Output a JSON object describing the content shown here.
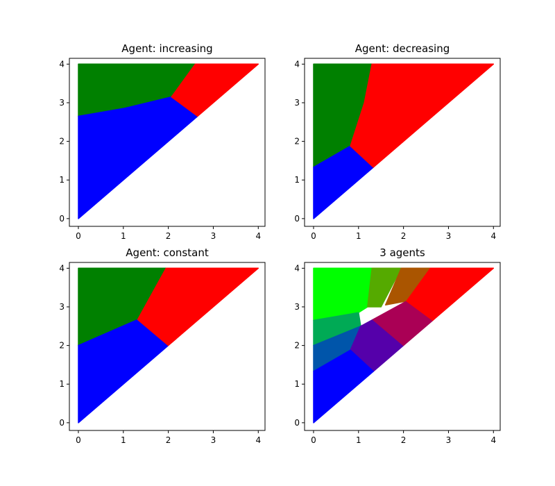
{
  "figure": {
    "colors": {
      "green": "#008000",
      "blue": "#0000ff",
      "red": "#ff0000"
    }
  },
  "chart_data": [
    {
      "type": "area",
      "title": "Agent: increasing",
      "xlim": [
        -0.2,
        4.15
      ],
      "ylim": [
        -0.2,
        4.15
      ],
      "xticks": [
        "0",
        "1",
        "2",
        "3",
        "4"
      ],
      "yticks": [
        "0",
        "1",
        "2",
        "3",
        "4"
      ],
      "domain": [
        [
          0,
          0
        ],
        [
          0,
          4
        ],
        [
          4,
          4
        ]
      ],
      "regions": [
        {
          "color": "#008000",
          "polygon": [
            [
              0,
              2.65
            ],
            [
              0,
              4
            ],
            [
              2.6,
              4
            ],
            [
              2.07,
              3.15
            ],
            [
              1.0,
              2.85
            ]
          ]
        },
        {
          "color": "#0000ff",
          "polygon": [
            [
              0,
              0
            ],
            [
              0,
              2.65
            ],
            [
              1.0,
              2.85
            ],
            [
              2.07,
              3.15
            ],
            [
              2.65,
              2.65
            ]
          ]
        },
        {
          "color": "#ff0000",
          "polygon": [
            [
              2.07,
              3.15
            ],
            [
              2.6,
              4
            ],
            [
              4,
              4
            ],
            [
              2.65,
              2.65
            ]
          ]
        }
      ]
    },
    {
      "type": "area",
      "title": "Agent: decreasing",
      "xlim": [
        -0.2,
        4.15
      ],
      "ylim": [
        -0.2,
        4.15
      ],
      "xticks": [
        "0",
        "1",
        "2",
        "3",
        "4"
      ],
      "yticks": [
        "0",
        "1",
        "2",
        "3",
        "4"
      ],
      "domain": [
        [
          0,
          0
        ],
        [
          0,
          4
        ],
        [
          4,
          4
        ]
      ],
      "regions": [
        {
          "color": "#008000",
          "polygon": [
            [
              0,
              1.33
            ],
            [
              0,
              4
            ],
            [
              1.3,
              4
            ],
            [
              1.13,
              3.0
            ],
            [
              0.82,
              1.88
            ]
          ]
        },
        {
          "color": "#0000ff",
          "polygon": [
            [
              0,
              0
            ],
            [
              0,
              1.33
            ],
            [
              0.82,
              1.88
            ],
            [
              1.33,
              1.33
            ]
          ]
        },
        {
          "color": "#ff0000",
          "polygon": [
            [
              0.82,
              1.88
            ],
            [
              1.13,
              3.0
            ],
            [
              1.3,
              4
            ],
            [
              4,
              4
            ],
            [
              1.33,
              1.33
            ]
          ]
        }
      ]
    },
    {
      "type": "area",
      "title": "Agent: constant",
      "xlim": [
        -0.2,
        4.15
      ],
      "ylim": [
        -0.2,
        4.15
      ],
      "xticks": [
        "0",
        "1",
        "2",
        "3",
        "4"
      ],
      "yticks": [
        "0",
        "1",
        "2",
        "3",
        "4"
      ],
      "domain": [
        [
          0,
          0
        ],
        [
          0,
          4
        ],
        [
          4,
          4
        ]
      ],
      "regions": [
        {
          "color": "#008000",
          "polygon": [
            [
              0,
              2.0
            ],
            [
              0,
              4
            ],
            [
              1.95,
              4
            ],
            [
              1.32,
              2.67
            ]
          ]
        },
        {
          "color": "#0000ff",
          "polygon": [
            [
              0,
              0
            ],
            [
              0,
              2.0
            ],
            [
              1.32,
              2.67
            ],
            [
              2.0,
              2.0
            ]
          ]
        },
        {
          "color": "#ff0000",
          "polygon": [
            [
              1.32,
              2.67
            ],
            [
              1.95,
              4
            ],
            [
              4,
              4
            ],
            [
              2.0,
              2.0
            ]
          ]
        }
      ]
    },
    {
      "type": "area",
      "title": "3 agents",
      "xlim": [
        -0.2,
        4.15
      ],
      "ylim": [
        -0.2,
        4.15
      ],
      "xticks": [
        "0",
        "1",
        "2",
        "3",
        "4"
      ],
      "yticks": [
        "0",
        "1",
        "2",
        "3",
        "4"
      ],
      "domain": [
        [
          0,
          0
        ],
        [
          0,
          4
        ],
        [
          4,
          4
        ]
      ],
      "regions": [
        {
          "color": "#00ff00",
          "polygon": [
            [
              0,
              2.65
            ],
            [
              0,
              4
            ],
            [
              1.3,
              4
            ],
            [
              1.2,
              3.0
            ],
            [
              1.0,
              2.85
            ]
          ]
        },
        {
          "color": "#55aa00",
          "polygon": [
            [
              1.3,
              4
            ],
            [
              1.95,
              4
            ],
            [
              1.5,
              3.0
            ],
            [
              1.2,
              3.0
            ]
          ]
        },
        {
          "color": "#aa5500",
          "polygon": [
            [
              1.95,
              4
            ],
            [
              2.6,
              4
            ],
            [
              2.07,
              3.15
            ],
            [
              1.6,
              3.05
            ]
          ]
        },
        {
          "color": "#00aa55",
          "polygon": [
            [
              0,
              2.0
            ],
            [
              0,
              2.65
            ],
            [
              1.0,
              2.85
            ],
            [
              1.05,
              2.5
            ]
          ]
        },
        {
          "color": "#0055aa",
          "polygon": [
            [
              0,
              1.33
            ],
            [
              0,
              2.0
            ],
            [
              1.05,
              2.5
            ],
            [
              0.82,
              1.88
            ]
          ]
        },
        {
          "color": "#5500aa",
          "polygon": [
            [
              0.82,
              1.88
            ],
            [
              1.05,
              2.5
            ],
            [
              1.32,
              2.67
            ],
            [
              2.0,
              2.0
            ],
            [
              1.33,
              1.33
            ]
          ]
        },
        {
          "color": "#aa0055",
          "polygon": [
            [
              1.32,
              2.67
            ],
            [
              2.07,
              3.15
            ],
            [
              2.65,
              2.65
            ],
            [
              2.0,
              2.0
            ]
          ]
        },
        {
          "color": "#0000ff",
          "polygon": [
            [
              0,
              0
            ],
            [
              0,
              1.33
            ],
            [
              0.82,
              1.88
            ],
            [
              1.33,
              1.33
            ]
          ]
        },
        {
          "color": "#ff0000",
          "polygon": [
            [
              2.07,
              3.15
            ],
            [
              2.6,
              4
            ],
            [
              4,
              4
            ],
            [
              2.65,
              2.65
            ]
          ]
        }
      ]
    }
  ]
}
